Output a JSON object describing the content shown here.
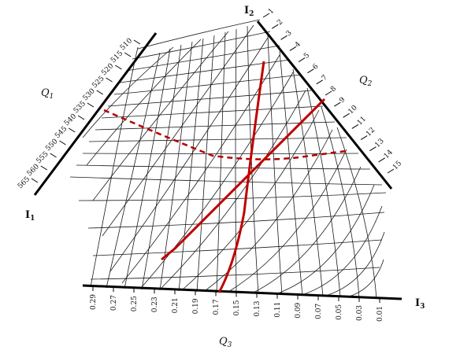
{
  "axes": {
    "I1": {
      "label": "I",
      "sub": "1"
    },
    "I2": {
      "label": "I",
      "sub": "2"
    },
    "I3": {
      "label": "I",
      "sub": "3"
    }
  },
  "scales": {
    "Q1": {
      "label": "Q",
      "sub": "1",
      "ticks": [
        "510",
        "515",
        "520",
        "525",
        "530",
        "535",
        "540",
        "545",
        "550",
        "555",
        "560",
        "565"
      ]
    },
    "Q2": {
      "label": "Q",
      "sub": "2",
      "ticks": [
        "1",
        "2",
        "3",
        "4",
        "5",
        "6",
        "7",
        "8",
        "9",
        "10",
        "11",
        "12",
        "13",
        "14",
        "15"
      ]
    },
    "Q3": {
      "label": "Q",
      "sub": "3",
      "ticks": [
        "0.29",
        "0.27",
        "0.25",
        "0.23",
        "0.21",
        "0.19",
        "0.17",
        "0.15",
        "0.13",
        "0.11",
        "0.09",
        "0.07",
        "0.05",
        "0.03",
        "0.01"
      ]
    }
  },
  "colors": {
    "grid": "#1a1a1a",
    "axis": "#000000",
    "highlight": "#c00000"
  }
}
